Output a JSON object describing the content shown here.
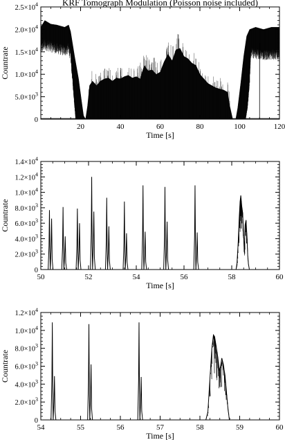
{
  "chart_data": [
    {
      "type": "line",
      "title": "KRF Tomograph Modulation (Poisson noise included)",
      "xlabel": "Time [s]",
      "ylabel": "Countrate",
      "xlim": [
        0,
        120
      ],
      "ylim": [
        0,
        25000
      ],
      "xticks": [
        "20",
        "40",
        "60",
        "80",
        "100",
        "120"
      ],
      "yticks": [
        {
          "m": "0",
          "e": ""
        },
        {
          "m": "5.0×10",
          "e": "3"
        },
        {
          "m": "1.0×10",
          "e": "4"
        },
        {
          "m": "1.5×10",
          "e": "4"
        },
        {
          "m": "2.0×10",
          "e": "4"
        },
        {
          "m": "2.5×10",
          "e": "4"
        }
      ],
      "series": [
        {
          "upper_envelope": [
            [
              0,
              20500
            ],
            [
              2,
              22000
            ],
            [
              5,
              21200
            ],
            [
              8,
              21000
            ],
            [
              12,
              20500
            ],
            [
              14,
              21000
            ],
            [
              15,
              19500
            ],
            [
              17,
              14000
            ],
            [
              19,
              9000
            ],
            [
              20.5,
              4000
            ],
            [
              21.5,
              800
            ],
            [
              22.5,
              0
            ],
            [
              23.5,
              3000
            ],
            [
              24.5,
              7500
            ],
            [
              26,
              8500
            ],
            [
              28,
              7500
            ],
            [
              30,
              8500
            ],
            [
              32,
              9000
            ],
            [
              34,
              9200
            ],
            [
              36,
              8500
            ],
            [
              38,
              9200
            ],
            [
              40,
              9000
            ],
            [
              42,
              9500
            ],
            [
              44,
              9800
            ],
            [
              46,
              9200
            ],
            [
              48,
              9500
            ],
            [
              50,
              9000
            ],
            [
              52,
              12000
            ],
            [
              54,
              10800
            ],
            [
              56,
              11000
            ],
            [
              58,
              10000
            ],
            [
              60,
              10500
            ],
            [
              62,
              12800
            ],
            [
              64,
              14500
            ],
            [
              66,
              13000
            ],
            [
              68,
              15500
            ],
            [
              70,
              15800
            ],
            [
              72,
              14000
            ],
            [
              74,
              13500
            ],
            [
              76,
              12500
            ],
            [
              78,
              12000
            ],
            [
              80,
              10000
            ],
            [
              84,
              8000
            ],
            [
              88,
              7000
            ],
            [
              92,
              6500
            ],
            [
              94,
              6000
            ],
            [
              95,
              3000
            ],
            [
              96.5,
              0
            ],
            [
              98,
              0
            ],
            [
              99,
              2500
            ],
            [
              100.5,
              8000
            ],
            [
              102,
              14000
            ],
            [
              103.5,
              18500
            ],
            [
              105,
              20000
            ],
            [
              108,
              20500
            ],
            [
              112,
              20000
            ],
            [
              116,
              20500
            ],
            [
              120,
              20500
            ]
          ],
          "lower_envelope": [
            [
              0,
              17000
            ],
            [
              2,
              18000
            ],
            [
              5,
              17500
            ],
            [
              8,
              17000
            ],
            [
              12,
              16500
            ],
            [
              14,
              17000
            ],
            [
              15,
              15000
            ],
            [
              16,
              9000
            ],
            [
              17,
              3000
            ],
            [
              17.5,
              0
            ],
            [
              23.5,
              0
            ],
            [
              96.5,
              0
            ],
            [
              103,
              0
            ],
            [
              104,
              3000
            ],
            [
              105,
              9000
            ],
            [
              105.5,
              15000
            ],
            [
              106,
              16000
            ],
            [
              110,
              15500
            ],
            [
              116,
              15500
            ],
            [
              120,
              15500
            ]
          ]
        }
      ]
    },
    {
      "type": "line",
      "title": "",
      "xlabel": "Time [s]",
      "ylabel": "Countrate",
      "xlim": [
        50,
        60
      ],
      "ylim": [
        0,
        14000
      ],
      "xticks": [
        "50",
        "52",
        "54",
        "56",
        "58",
        "60"
      ],
      "yticks": [
        {
          "m": "0",
          "e": ""
        },
        {
          "m": "2.0×10",
          "e": "3"
        },
        {
          "m": "4.0×10",
          "e": "3"
        },
        {
          "m": "6.0×10",
          "e": "3"
        },
        {
          "m": "8.0×10",
          "e": "3"
        },
        {
          "m": "1.0×10",
          "e": "4"
        },
        {
          "m": "1.2×10",
          "e": "4"
        },
        {
          "m": "1.4×10",
          "e": "4"
        }
      ],
      "series": [
        {
          "peaks": [
            {
              "t": 50.38,
              "h1": 7700,
              "h2": 6600
            },
            {
              "t": 50.95,
              "h1": 8100,
              "h2": 4300
            },
            {
              "t": 51.55,
              "h1": 7900,
              "h2": 6000
            },
            {
              "t": 52.15,
              "h1": 12000,
              "h2": 7500
            },
            {
              "t": 52.78,
              "h1": 9300,
              "h2": 5600
            },
            {
              "t": 53.52,
              "h1": 8800,
              "h2": 4700
            },
            {
              "t": 54.3,
              "h1": 10900,
              "h2": 4900
            },
            {
              "t": 55.22,
              "h1": 10700,
              "h2": 6200
            },
            {
              "t": 56.48,
              "h1": 10900,
              "h2": 4800
            }
          ],
          "burst": [
            [
              58.18,
              0
            ],
            [
              58.22,
              800
            ],
            [
              58.27,
              3500
            ],
            [
              58.31,
              6500
            ],
            [
              58.35,
              8800
            ],
            [
              58.38,
              9600
            ],
            [
              58.42,
              8200
            ],
            [
              58.46,
              7300
            ],
            [
              58.5,
              4200
            ],
            [
              58.53,
              2400
            ],
            [
              58.56,
              5800
            ],
            [
              58.6,
              6400
            ],
            [
              58.64,
              4200
            ],
            [
              58.67,
              1800
            ],
            [
              58.7,
              700
            ],
            [
              58.74,
              0
            ]
          ]
        }
      ]
    },
    {
      "type": "line",
      "title": "",
      "xlabel": "Time [s]",
      "ylabel": "Countrate",
      "xlim": [
        54,
        60
      ],
      "ylim": [
        0,
        12000
      ],
      "xticks": [
        "54",
        "55",
        "56",
        "57",
        "58",
        "59",
        "60"
      ],
      "yticks": [
        {
          "m": "0",
          "e": ""
        },
        {
          "m": "2.0×10",
          "e": "3"
        },
        {
          "m": "4.0×10",
          "e": "3"
        },
        {
          "m": "6.0×10",
          "e": "3"
        },
        {
          "m": "8.0×10",
          "e": "3"
        },
        {
          "m": "1.0×10",
          "e": "4"
        },
        {
          "m": "1.2×10",
          "e": "4"
        }
      ],
      "series": [
        {
          "peaks": [
            {
              "t": 54.3,
              "h1": 10900,
              "h2": 4900
            },
            {
              "t": 55.22,
              "h1": 10700,
              "h2": 6200
            },
            {
              "t": 56.48,
              "h1": 10900,
              "h2": 4800
            }
          ],
          "burst": [
            [
              58.15,
              0
            ],
            [
              58.2,
              900
            ],
            [
              58.25,
              4500
            ],
            [
              58.3,
              8000
            ],
            [
              58.34,
              9500
            ],
            [
              58.37,
              9300
            ],
            [
              58.41,
              8200
            ],
            [
              58.45,
              7000
            ],
            [
              58.49,
              5500
            ],
            [
              58.52,
              6000
            ],
            [
              58.55,
              6900
            ],
            [
              58.59,
              6200
            ],
            [
              58.63,
              5000
            ],
            [
              58.66,
              3500
            ],
            [
              58.7,
              1500
            ],
            [
              58.74,
              0
            ]
          ]
        }
      ]
    }
  ]
}
